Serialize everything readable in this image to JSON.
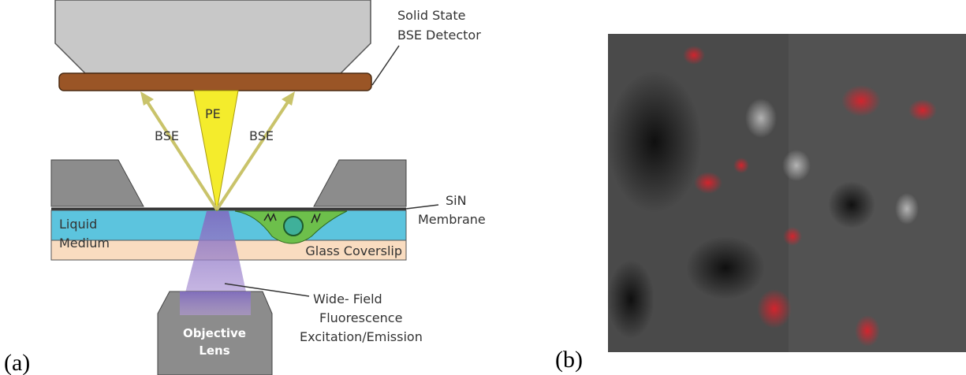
{
  "panel_a": {
    "label": "(a)",
    "detector": [
      "Solid State",
      "BSE Detector"
    ],
    "pe": "PE",
    "bse_left": "BSE",
    "bse_right": "BSE",
    "membrane": [
      "SiN",
      "Membrane"
    ],
    "liquid": [
      "Liquid",
      "Medium"
    ],
    "coverslip": "Glass Coverslip",
    "fluorescence": [
      "Wide- Field",
      "Fluorescence",
      "Excitation/Emission"
    ],
    "objective": [
      "Objective",
      "Lens"
    ]
  },
  "panel_b": {
    "label": "(b)"
  }
}
